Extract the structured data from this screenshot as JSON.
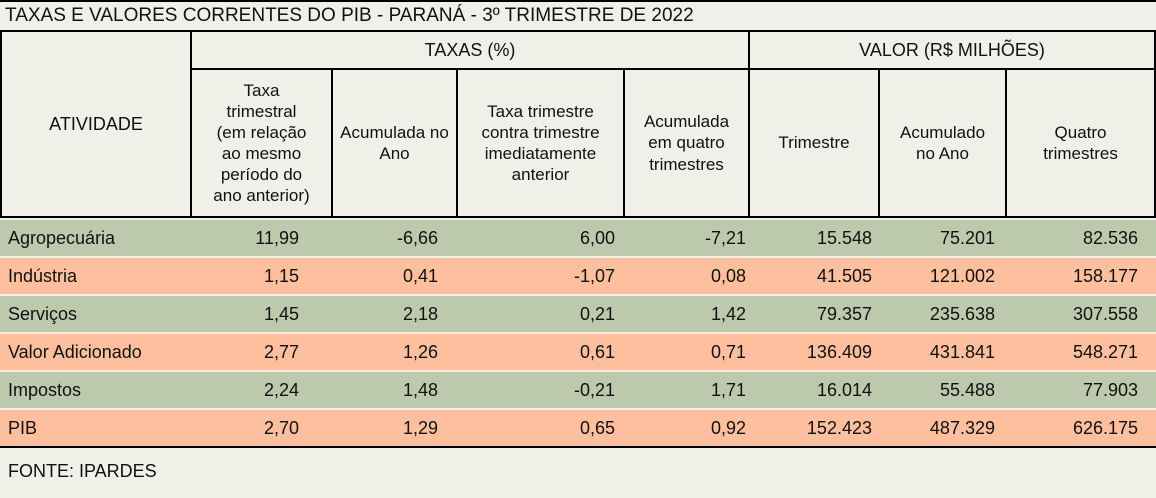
{
  "title": "TAXAS E VALORES CORRENTES DO PIB - PARANÁ - 3º TRIMESTRE DE 2022",
  "source": "FONTE: IPARDES",
  "colors": {
    "background": "#f0efe8",
    "border": "#000000",
    "row_green": "#bdc9ad",
    "row_salmon": "#febf9e"
  },
  "chart_data": {
    "type": "table",
    "title": "TAXAS E VALORES CORRENTES DO PIB - PARANÁ - 3º TRIMESTRE DE 2022",
    "row_header": "ATIVIDADE",
    "groups": [
      {
        "label": "TAXAS (%)",
        "span": 4
      },
      {
        "label": "VALOR (R$ MILHÕES)",
        "span": 3
      }
    ],
    "columns": [
      "Taxa trimestral (em relação ao mesmo período do ano anterior)",
      "Acumulada no Ano",
      "Taxa trimestre contra trimestre imediatamente anterior",
      "Acumulada em quatro trimestres",
      "Trimestre",
      "Acumulado no Ano",
      "Quatro trimestres"
    ],
    "rows": [
      {
        "activity": "Agropecuária",
        "values": [
          "11,99",
          "-6,66",
          "6,00",
          "-7,21",
          "15.548",
          "75.201",
          "82.536"
        ]
      },
      {
        "activity": "Indústria",
        "values": [
          "1,15",
          "0,41",
          "-1,07",
          "0,08",
          "41.505",
          "121.002",
          "158.177"
        ]
      },
      {
        "activity": "Serviços",
        "values": [
          "1,45",
          "2,18",
          "0,21",
          "1,42",
          "79.357",
          "235.638",
          "307.558"
        ]
      },
      {
        "activity": "Valor Adicionado",
        "values": [
          "2,77",
          "1,26",
          "0,61",
          "0,71",
          "136.409",
          "431.841",
          "548.271"
        ]
      },
      {
        "activity": "Impostos",
        "values": [
          "2,24",
          "1,48",
          "-0,21",
          "1,71",
          "16.014",
          "55.488",
          "77.903"
        ]
      },
      {
        "activity": "PIB",
        "values": [
          "2,70",
          "1,29",
          "0,65",
          "0,92",
          "152.423",
          "487.329",
          "626.175"
        ]
      }
    ],
    "row_colors": [
      "green",
      "salmon",
      "green",
      "salmon",
      "green",
      "salmon"
    ],
    "source": "FONTE: IPARDES"
  }
}
